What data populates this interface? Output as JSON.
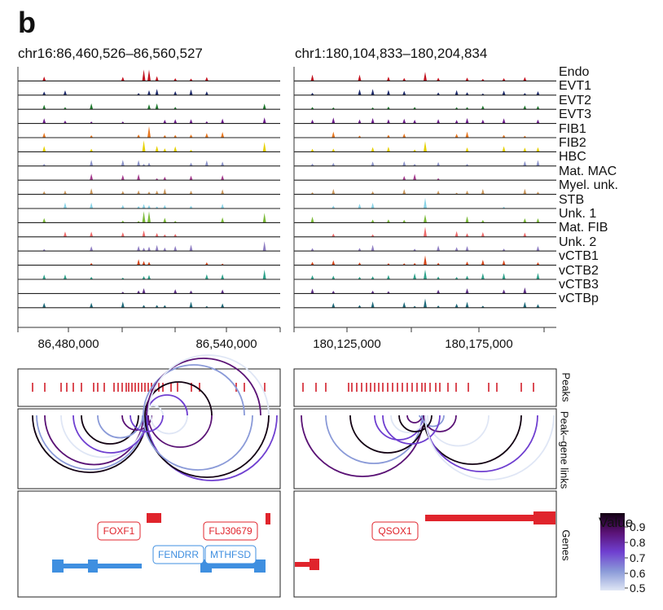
{
  "panel_letter": "b",
  "regions": [
    {
      "title": "chr16:86,460,526–86,560,527",
      "axis_ticks": [
        "86,480,000",
        "86,540,000"
      ]
    },
    {
      "title": "chr1:180,104,833–180,204,834",
      "axis_ticks": [
        "180,125,000",
        "180,175,000"
      ]
    }
  ],
  "tracks": [
    {
      "name": "Endo",
      "color": "#c1121f"
    },
    {
      "name": "EVT1",
      "color": "#1d2a6b"
    },
    {
      "name": "EVT2",
      "color": "#1f7a2e"
    },
    {
      "name": "EVT3",
      "color": "#6a1b8a"
    },
    {
      "name": "FIB1",
      "color": "#e8771f"
    },
    {
      "name": "FIB2",
      "color": "#e6d100"
    },
    {
      "name": "HBC",
      "color": "#8b93c9"
    },
    {
      "name": "Mat. MAC",
      "color": "#a63d8f"
    },
    {
      "name": "Myel. unk.",
      "color": "#c9955a"
    },
    {
      "name": "STB",
      "color": "#89d3e6"
    },
    {
      "name": "Unk. 1",
      "color": "#7dbb3b"
    },
    {
      "name": "Mat. FIB",
      "color": "#ee6b6b"
    },
    {
      "name": "Unk. 2",
      "color": "#8f7ec2"
    },
    {
      "name": "vCTB1",
      "color": "#d4451a"
    },
    {
      "name": "vCTB2",
      "color": "#2fa38c"
    },
    {
      "name": "vCTB3",
      "color": "#5d2f86"
    },
    {
      "name": "vCTBp",
      "color": "#1e6a7a"
    }
  ],
  "side_labels": {
    "peaks": "Peaks",
    "links": "Peak–gene links",
    "genes": "Genes"
  },
  "genes": {
    "left": [
      {
        "name": "FOXF1",
        "color": "#e0242c"
      },
      {
        "name": "FLJ30679",
        "color": "#e0242c"
      },
      {
        "name": "FENDRR",
        "color": "#3f8fe0"
      },
      {
        "name": "MTHFSD",
        "color": "#3f8fe0"
      }
    ],
    "right": [
      {
        "name": "QSOX1",
        "color": "#e0242c"
      }
    ]
  },
  "legend": {
    "title": "Value",
    "ticks": [
      "0.9",
      "0.8",
      "0.7",
      "0.6",
      "0.5"
    ],
    "colors": [
      "#120012",
      "#5a1275",
      "#6f3fd0",
      "#8a9ad8",
      "#dfe6f5"
    ]
  }
}
